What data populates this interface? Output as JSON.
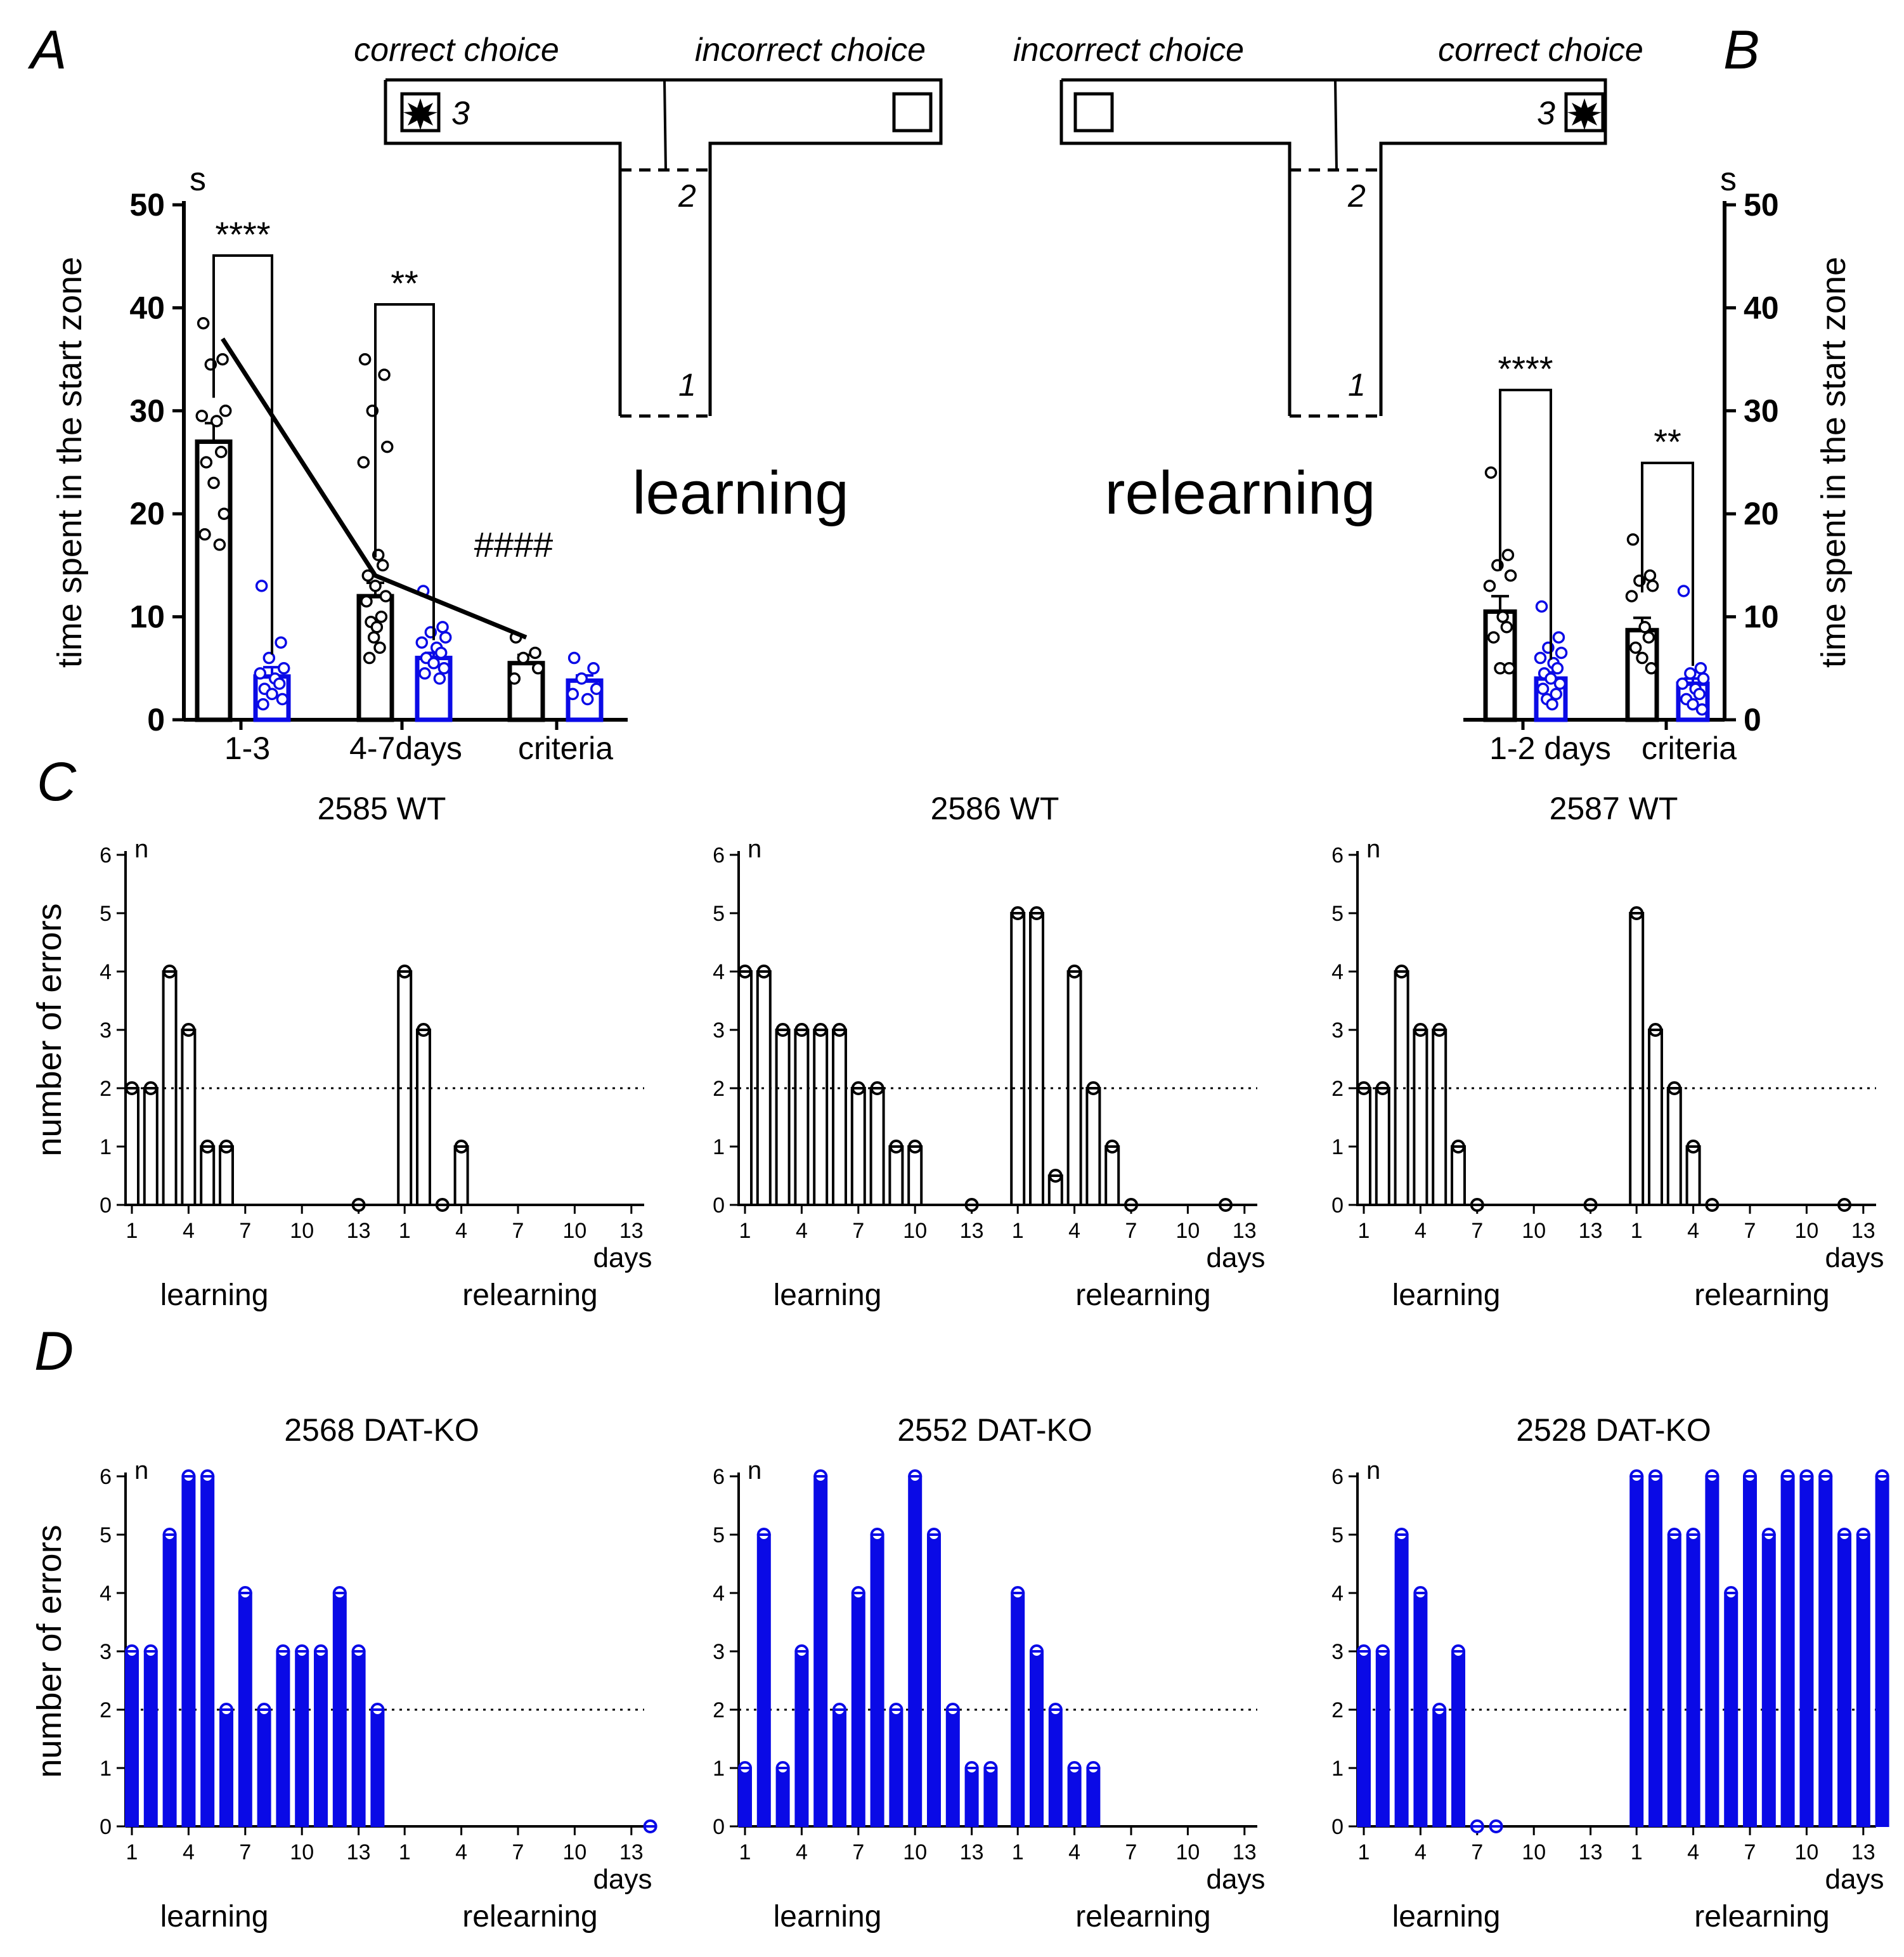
{
  "colors": {
    "wt": "#000000",
    "ko": "#0a0ae6",
    "bg": "#ffffff"
  },
  "panels": {
    "A": "A",
    "B": "B",
    "C": "C",
    "D": "D"
  },
  "maze": {
    "left": {
      "label_left": "correct choice",
      "label_right": "incorrect choice",
      "reward_arm": "left",
      "goal_num": "3",
      "start_num": "1",
      "mid_num": "2",
      "caption": "learning"
    },
    "right": {
      "label_left": "incorrect choice",
      "label_right": "correct choice",
      "reward_arm": "right",
      "goal_num": "3",
      "start_num": "1",
      "mid_num": "2",
      "caption": "relearning"
    }
  },
  "chart_data": [
    {
      "id": "A",
      "type": "bar",
      "title": "",
      "ylabel": "time spent in the start zone",
      "yunit": "s",
      "ylim": [
        0,
        50
      ],
      "yticks": [
        0,
        10,
        20,
        30,
        40,
        50
      ],
      "categories": [
        "1-3",
        "4-7days",
        "criteria"
      ],
      "series": [
        {
          "name": "WT",
          "color": "black",
          "means": [
            27,
            12,
            5.5
          ],
          "sem": [
            1.8,
            1.3,
            0.8
          ],
          "points": [
            [
              38.5,
              35,
              34.5,
              30,
              29.5,
              29,
              26,
              25,
              23,
              20,
              18,
              17
            ],
            [
              35,
              33.5,
              30,
              26.5,
              25,
              16,
              15,
              14,
              13,
              12,
              11.5,
              10,
              9.5,
              9,
              8,
              7,
              6
            ],
            [
              8,
              6.5,
              6,
              5,
              4
            ]
          ]
        },
        {
          "name": "DAT-KO",
          "color": "blue",
          "means": [
            4.2,
            6,
            3.8
          ],
          "sem": [
            0.9,
            0.5,
            0.5
          ],
          "points": [
            [
              13,
              7.5,
              6,
              5,
              4.5,
              4,
              3.5,
              3,
              2.5,
              2,
              1.5
            ],
            [
              12.5,
              9,
              8.5,
              8,
              7.5,
              7,
              6.5,
              6,
              5.5,
              5,
              4.5,
              4
            ],
            [
              6,
              5,
              4,
              3,
              2.5,
              2
            ]
          ]
        }
      ],
      "trend_line": [
        37,
        14,
        8
      ],
      "annotations": [
        {
          "text": "****",
          "between": [
            0,
            "WT",
            0,
            "DAT-KO"
          ]
        },
        {
          "text": "**",
          "between": [
            1,
            "WT",
            1,
            "DAT-KO"
          ]
        },
        {
          "text": "####",
          "near": "trend"
        }
      ]
    },
    {
      "id": "B",
      "type": "bar",
      "title": "",
      "ylabel": "time spent in the start zone",
      "yunit": "s",
      "ylim": [
        0,
        50
      ],
      "yticks": [
        0,
        10,
        20,
        30,
        40,
        50
      ],
      "categories": [
        "1-2 days",
        "criteria"
      ],
      "series": [
        {
          "name": "WT",
          "color": "black",
          "means": [
            10.5,
            8.7
          ],
          "sem": [
            1.5,
            1.2
          ],
          "points": [
            [
              24,
              16,
              15,
              14,
              13,
              10,
              9,
              8,
              5,
              5
            ],
            [
              17.5,
              14,
              13.5,
              13,
              12,
              9,
              8,
              7,
              6,
              5
            ]
          ]
        },
        {
          "name": "DAT-KO",
          "color": "blue",
          "means": [
            4,
            3.5
          ],
          "sem": [
            0.6,
            0.5
          ],
          "points": [
            [
              11,
              8,
              7,
              6.5,
              6,
              5.5,
              5,
              4.5,
              4,
              3.5,
              3,
              2.5,
              2,
              1.5
            ],
            [
              12.5,
              5,
              4.5,
              4,
              3.5,
              3,
              2.5,
              2,
              1.5,
              1
            ]
          ]
        }
      ],
      "annotations": [
        {
          "text": "****",
          "between": [
            0,
            "WT",
            0,
            "DAT-KO"
          ]
        },
        {
          "text": "**",
          "between": [
            1,
            "WT",
            1,
            "DAT-KO"
          ]
        }
      ]
    },
    {
      "id": "C1",
      "type": "bar",
      "title": "2585 WT",
      "group": "WT",
      "ylabel": "number of errors",
      "ylabel_unit": "n",
      "ylim": [
        0,
        6
      ],
      "yticks": [
        0,
        1,
        2,
        3,
        4,
        5,
        6
      ],
      "criterion": 2,
      "xticks": [
        "1",
        "4",
        "7",
        "10",
        "13",
        "1",
        "4",
        "7",
        "10",
        "13"
      ],
      "xlabel": "days",
      "sections": [
        "learning",
        "relearning"
      ],
      "learning": [
        2,
        2,
        4,
        3,
        1,
        1,
        null,
        null,
        null,
        null,
        null,
        null,
        0,
        null
      ],
      "relearning": [
        4,
        3,
        0,
        1,
        null,
        null,
        null,
        null,
        null,
        null,
        null,
        null,
        null,
        null
      ]
    },
    {
      "id": "C2",
      "type": "bar",
      "title": "2586 WT",
      "group": "WT",
      "ylabel": "",
      "ylabel_unit": "n",
      "ylim": [
        0,
        6
      ],
      "yticks": [
        0,
        1,
        2,
        3,
        4,
        5,
        6
      ],
      "criterion": 2,
      "xticks": [
        "1",
        "4",
        "7",
        "10",
        "13",
        "1",
        "4",
        "7",
        "10",
        "13"
      ],
      "xlabel": "days",
      "sections": [
        "learning",
        "relearning"
      ],
      "learning": [
        4,
        4,
        3,
        3,
        3,
        3,
        2,
        2,
        1,
        1,
        null,
        null,
        0,
        null
      ],
      "relearning": [
        5,
        5,
        0.5,
        4,
        2,
        1,
        0,
        null,
        null,
        null,
        null,
        0,
        null,
        null
      ]
    },
    {
      "id": "C3",
      "type": "bar",
      "title": "2587 WT",
      "group": "WT",
      "ylabel": "",
      "ylabel_unit": "n",
      "ylim": [
        0,
        6
      ],
      "yticks": [
        0,
        1,
        2,
        3,
        4,
        5,
        6
      ],
      "criterion": 2,
      "xticks": [
        "1",
        "4",
        "7",
        "10",
        "13",
        "1",
        "4",
        "7",
        "10",
        "13"
      ],
      "xlabel": "days",
      "sections": [
        "learning",
        "relearning"
      ],
      "learning": [
        2,
        2,
        4,
        3,
        3,
        1,
        0,
        null,
        null,
        null,
        null,
        null,
        0,
        null
      ],
      "relearning": [
        5,
        3,
        2,
        1,
        0,
        null,
        null,
        null,
        null,
        null,
        null,
        0,
        null,
        null
      ]
    },
    {
      "id": "D1",
      "type": "bar",
      "title": "2568 DAT-KO",
      "group": "DAT-KO",
      "ylabel": "number of errors",
      "ylabel_unit": "n",
      "ylim": [
        0,
        6
      ],
      "yticks": [
        0,
        1,
        2,
        3,
        4,
        5,
        6
      ],
      "criterion": 2,
      "xticks": [
        "1",
        "4",
        "7",
        "10",
        "13",
        "1",
        "4",
        "7",
        "10",
        "13"
      ],
      "xlabel": "days",
      "sections": [
        "learning",
        "relearning"
      ],
      "learning": [
        3,
        3,
        5,
        6,
        6,
        2,
        4,
        2,
        3,
        3,
        3,
        4,
        3,
        2
      ],
      "relearning": [
        null,
        null,
        null,
        null,
        null,
        null,
        null,
        null,
        null,
        null,
        null,
        null,
        null,
        0
      ]
    },
    {
      "id": "D2",
      "type": "bar",
      "title": "2552 DAT-KO",
      "group": "DAT-KO",
      "ylabel": "",
      "ylabel_unit": "n",
      "ylim": [
        0,
        6
      ],
      "yticks": [
        0,
        1,
        2,
        3,
        4,
        5,
        6
      ],
      "criterion": 2,
      "xticks": [
        "1",
        "4",
        "7",
        "10",
        "13",
        "1",
        "4",
        "7",
        "10",
        "13"
      ],
      "xlabel": "days",
      "sections": [
        "learning",
        "relearning"
      ],
      "learning": [
        1,
        5,
        1,
        3,
        6,
        2,
        4,
        5,
        2,
        6,
        5,
        2,
        1,
        1
      ],
      "relearning": [
        4,
        3,
        2,
        1,
        1,
        null,
        null,
        null,
        null,
        null,
        null,
        null,
        null,
        null
      ]
    },
    {
      "id": "D3",
      "type": "bar",
      "title": "2528 DAT-KO",
      "group": "DAT-KO",
      "ylabel": "",
      "ylabel_unit": "n",
      "ylim": [
        0,
        6
      ],
      "yticks": [
        0,
        1,
        2,
        3,
        4,
        5,
        6
      ],
      "criterion": 2,
      "xticks": [
        "1",
        "4",
        "7",
        "10",
        "13",
        "1",
        "4",
        "7",
        "10",
        "13"
      ],
      "xlabel": "days",
      "sections": [
        "learning",
        "relearning"
      ],
      "learning": [
        3,
        3,
        5,
        4,
        2,
        3,
        0,
        0,
        null,
        null,
        null,
        null,
        null,
        null
      ],
      "relearning": [
        6,
        6,
        5,
        5,
        6,
        4,
        6,
        5,
        6,
        6,
        6,
        5,
        5,
        6
      ]
    }
  ]
}
